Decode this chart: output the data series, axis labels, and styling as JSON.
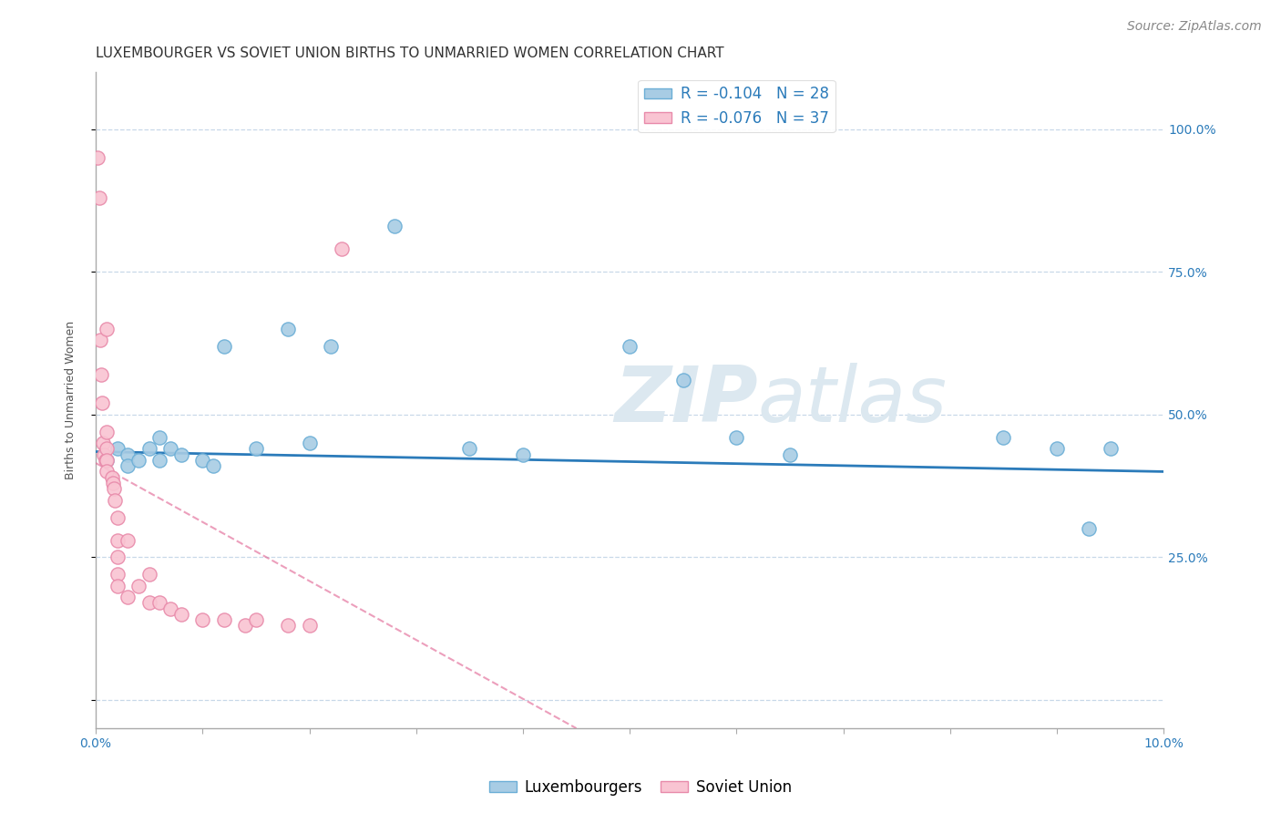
{
  "title": "LUXEMBOURGER VS SOVIET UNION BIRTHS TO UNMARRIED WOMEN CORRELATION CHART",
  "source": "Source: ZipAtlas.com",
  "ylabel": "Births to Unmarried Women",
  "xlim": [
    0.0,
    0.1
  ],
  "ylim": [
    -0.05,
    1.1
  ],
  "yticks": [
    0.0,
    0.25,
    0.5,
    0.75,
    1.0
  ],
  "ytick_labels": [
    "",
    "25.0%",
    "50.0%",
    "75.0%",
    "100.0%"
  ],
  "xticks": [
    0.0,
    0.01,
    0.02,
    0.03,
    0.04,
    0.05,
    0.06,
    0.07,
    0.08,
    0.09,
    0.1
  ],
  "xtick_labels": [
    "0.0%",
    "",
    "",
    "",
    "",
    "",
    "",
    "",
    "",
    "",
    "10.0%"
  ],
  "legend_blue_label": "Luxembourgers",
  "legend_pink_label": "Soviet Union",
  "R_blue": -0.104,
  "N_blue": 28,
  "R_pink": -0.076,
  "N_pink": 37,
  "blue_color": "#a8cce4",
  "blue_edge_color": "#6baed6",
  "blue_line_color": "#2b7bba",
  "pink_color": "#f9c4d2",
  "pink_edge_color": "#e88aaa",
  "pink_line_color": "#e06090",
  "background_color": "#ffffff",
  "grid_color": "#c8d8e8",
  "watermark_color": "#dce8f0",
  "blue_scatter_x": [
    0.001,
    0.002,
    0.003,
    0.003,
    0.004,
    0.005,
    0.006,
    0.006,
    0.007,
    0.008,
    0.01,
    0.011,
    0.012,
    0.015,
    0.018,
    0.02,
    0.022,
    0.028,
    0.035,
    0.04,
    0.05,
    0.055,
    0.06,
    0.065,
    0.085,
    0.09,
    0.093,
    0.095
  ],
  "blue_scatter_y": [
    0.42,
    0.44,
    0.43,
    0.41,
    0.42,
    0.44,
    0.42,
    0.46,
    0.44,
    0.43,
    0.42,
    0.41,
    0.62,
    0.44,
    0.65,
    0.45,
    0.62,
    0.83,
    0.44,
    0.43,
    0.62,
    0.56,
    0.46,
    0.43,
    0.46,
    0.44,
    0.3,
    0.44
  ],
  "pink_scatter_x": [
    0.0002,
    0.0003,
    0.0004,
    0.0005,
    0.0006,
    0.0007,
    0.0008,
    0.0009,
    0.001,
    0.001,
    0.001,
    0.001,
    0.001,
    0.0015,
    0.0016,
    0.0017,
    0.0018,
    0.002,
    0.002,
    0.002,
    0.002,
    0.002,
    0.003,
    0.003,
    0.004,
    0.005,
    0.005,
    0.006,
    0.007,
    0.008,
    0.01,
    0.012,
    0.014,
    0.015,
    0.018,
    0.02,
    0.023
  ],
  "pink_scatter_y": [
    0.95,
    0.88,
    0.63,
    0.57,
    0.52,
    0.45,
    0.43,
    0.42,
    0.65,
    0.47,
    0.44,
    0.42,
    0.4,
    0.39,
    0.38,
    0.37,
    0.35,
    0.32,
    0.28,
    0.25,
    0.22,
    0.2,
    0.28,
    0.18,
    0.2,
    0.22,
    0.17,
    0.17,
    0.16,
    0.15,
    0.14,
    0.14,
    0.13,
    0.14,
    0.13,
    0.13,
    0.79
  ],
  "title_fontsize": 11,
  "axis_label_fontsize": 9,
  "tick_fontsize": 10,
  "legend_fontsize": 12,
  "source_fontsize": 10
}
